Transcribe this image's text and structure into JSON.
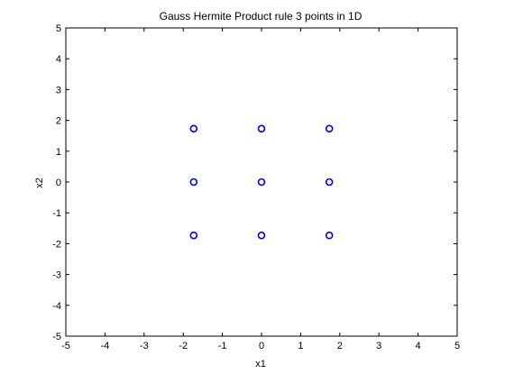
{
  "chart_data": {
    "type": "scatter",
    "title": "Gauss Hermite Product rule 3 points in 1D",
    "xlabel": "x1",
    "ylabel": "x2",
    "xlim": [
      -5,
      5
    ],
    "ylim": [
      -5,
      5
    ],
    "xticks": [
      -5,
      -4,
      -3,
      -2,
      -1,
      0,
      1,
      2,
      3,
      4,
      5
    ],
    "yticks": [
      -5,
      -4,
      -3,
      -2,
      -1,
      0,
      1,
      2,
      3,
      4,
      5
    ],
    "grid": false,
    "marker": "circle-open",
    "marker_color": "#0000c8",
    "points": [
      {
        "x": -1.732,
        "y": 1.732
      },
      {
        "x": 0,
        "y": 1.732
      },
      {
        "x": 1.732,
        "y": 1.732
      },
      {
        "x": -1.732,
        "y": 0
      },
      {
        "x": 0,
        "y": 0
      },
      {
        "x": 1.732,
        "y": 0
      },
      {
        "x": -1.732,
        "y": -1.732
      },
      {
        "x": 0,
        "y": -1.732
      },
      {
        "x": 1.732,
        "y": -1.732
      }
    ]
  }
}
